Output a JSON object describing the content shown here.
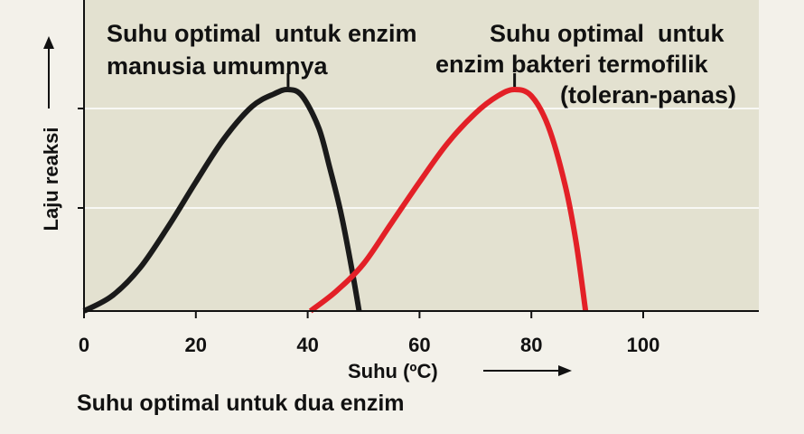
{
  "chart_data": {
    "type": "line",
    "xlabel": "Suhu (ºC)",
    "ylabel": "Laju reaksi",
    "xlim": [
      0,
      120
    ],
    "ylim": [
      0,
      1.1
    ],
    "xticks": [
      0,
      20,
      40,
      60,
      80,
      100
    ],
    "x_tick_labels": [
      "0",
      "20",
      "40",
      "60",
      "80",
      "100"
    ],
    "grid": "horizontal",
    "series": [
      {
        "color": "#1a1a1a",
        "x": [
          0,
          5,
          10,
          15,
          20,
          25,
          30,
          34,
          36.5,
          39,
          42,
          44,
          46,
          48,
          49.2
        ],
        "y": [
          0,
          0.07,
          0.2,
          0.39,
          0.6,
          0.8,
          0.95,
          1.01,
          1.03,
          1.0,
          0.85,
          0.66,
          0.45,
          0.18,
          0
        ]
      },
      {
        "color": "#e32027",
        "x": [
          40.5,
          45,
          50,
          55,
          60,
          65,
          70,
          74,
          77,
          80,
          83,
          86,
          88,
          89.7
        ],
        "y": [
          0,
          0.09,
          0.22,
          0.41,
          0.6,
          0.78,
          0.92,
          1.0,
          1.03,
          1.0,
          0.86,
          0.59,
          0.32,
          0
        ]
      }
    ],
    "annotations": [
      {
        "lines": [
          "Suhu optimal  untuk enzim",
          "manusia umumnya"
        ],
        "x": 36.5,
        "y": 1.03
      },
      {
        "lines": [
          "Suhu optimal  untuk",
          "enzim bakteri termofilik",
          "(toleran-panas)"
        ],
        "x": 77,
        "y": 1.03
      }
    ],
    "caption": "Suhu optimal  untuk dua enzim"
  },
  "colors": {
    "plot_background": "#e3e1d0",
    "page_background": "#f3f1ea",
    "gridline": "#ffffff",
    "axis": "#111111"
  }
}
